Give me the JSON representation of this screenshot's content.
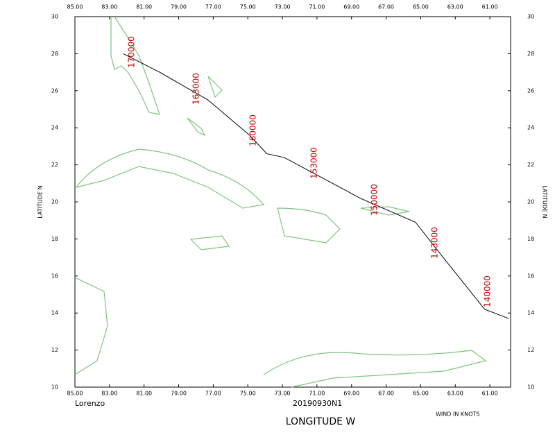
{
  "map": {
    "storm": "Lorenzo",
    "mission": "20190930N1",
    "wind_note": "WIND IN KNOTS",
    "x_axis_label": "LONGITUDE   W",
    "y_axis_label": "LATITUDE   N",
    "xlim": [
      85,
      59.8
    ],
    "ylim": [
      10,
      30
    ],
    "xticks": [
      {
        "value": 85,
        "label": "85.00"
      },
      {
        "value": 83,
        "label": "83.00"
      },
      {
        "value": 81,
        "label": "81.00"
      },
      {
        "value": 79,
        "label": "79.00"
      },
      {
        "value": 77,
        "label": "77.00"
      },
      {
        "value": 75,
        "label": "75.00"
      },
      {
        "value": 73,
        "label": "73.00"
      },
      {
        "value": 71,
        "label": "71.00"
      },
      {
        "value": 69,
        "label": "69.00"
      },
      {
        "value": 67,
        "label": "67.00"
      },
      {
        "value": 65,
        "label": "65.00"
      },
      {
        "value": 63,
        "label": "63.00"
      },
      {
        "value": 61,
        "label": "61.00"
      }
    ],
    "yticks": [
      10,
      12,
      14,
      16,
      18,
      20,
      22,
      24,
      26,
      28,
      30
    ],
    "track": {
      "lon": [
        82.2,
        80.1,
        77.3,
        74.9,
        73.9,
        72.9,
        71.3,
        68.5,
        65.3,
        63.7,
        61.3,
        59.9
      ],
      "lat": [
        28.0,
        27.0,
        25.5,
        23.6,
        22.6,
        22.4,
        21.6,
        20.2,
        18.9,
        17.0,
        14.2,
        13.7
      ]
    },
    "times": [
      "170000",
      "163000",
      "160000",
      "153000",
      "150000",
      "143000",
      "140000"
    ]
  }
}
